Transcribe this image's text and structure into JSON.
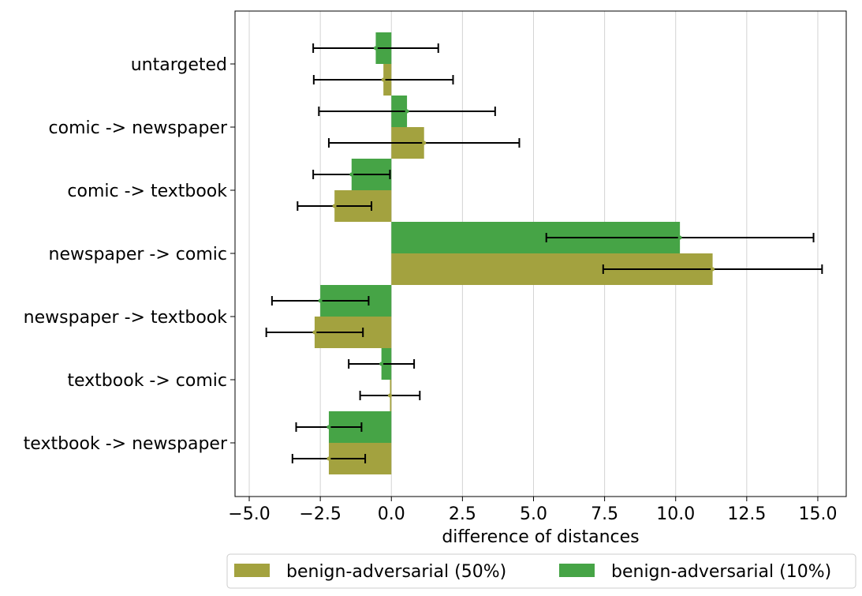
{
  "chart_data": {
    "type": "bar",
    "orientation": "horizontal",
    "title": "",
    "xlabel": "difference of distances",
    "ylabel": "",
    "xlim": [
      -5.5,
      16.0
    ],
    "xticks": [
      -5.0,
      -2.5,
      0.0,
      2.5,
      5.0,
      7.5,
      10.0,
      12.5,
      15.0
    ],
    "xtick_labels": [
      "−5.0",
      "−2.5",
      "0.0",
      "2.5",
      "5.0",
      "7.5",
      "10.0",
      "12.5",
      "15.0"
    ],
    "grid": "vertical",
    "legend_position": "bottom-right, outside plot",
    "categories": [
      "untargeted",
      "comic -> newspaper",
      "comic -> textbook",
      "newspaper -> comic",
      "newspaper -> textbook",
      "textbook -> comic",
      "textbook -> newspaper"
    ],
    "series": [
      {
        "name": "benign-adversarial (50%)",
        "color": "#a3a23f",
        "values": [
          -0.28,
          1.15,
          -2.0,
          11.3,
          -2.7,
          -0.05,
          -2.2
        ],
        "error": [
          2.45,
          3.35,
          1.3,
          3.85,
          1.7,
          1.05,
          1.28
        ]
      },
      {
        "name": "benign-adversarial (10%)",
        "color": "#46a446",
        "values": [
          -0.55,
          0.55,
          -1.4,
          10.15,
          -2.5,
          -0.35,
          -2.2
        ],
        "error": [
          2.2,
          3.1,
          1.35,
          4.7,
          1.7,
          1.15,
          1.15
        ]
      }
    ]
  }
}
